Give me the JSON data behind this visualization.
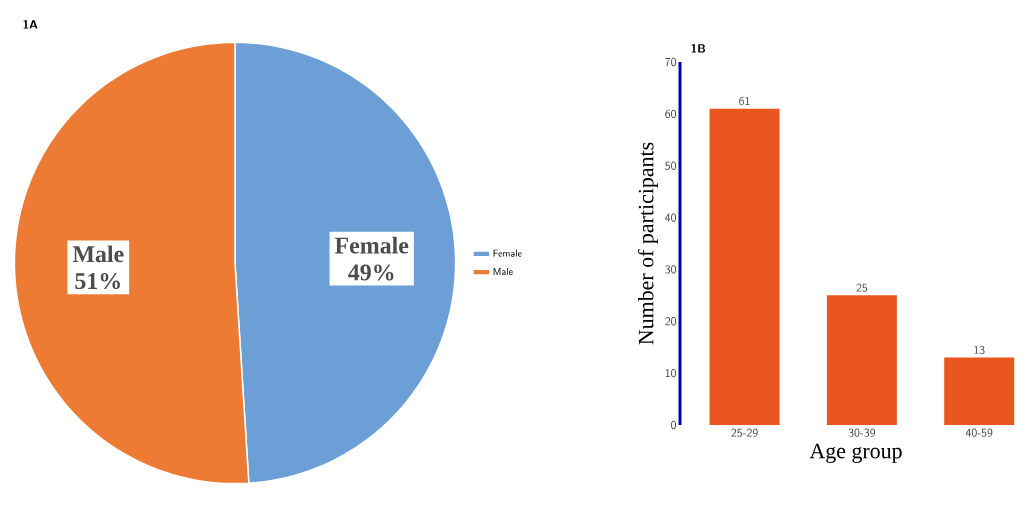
{
  "chart_data": [
    {
      "type": "pie",
      "title": "1A",
      "categories": [
        "Female",
        "Male"
      ],
      "values": [
        49,
        51
      ],
      "colors": [
        "#6b9fd6",
        "#ee7b33"
      ],
      "value_labels": [
        "49%",
        "51%"
      ],
      "legend": "right"
    },
    {
      "type": "bar",
      "title": "1B",
      "categories": [
        "25-29",
        "30-39",
        "40-59"
      ],
      "values": [
        61,
        25,
        13
      ],
      "color": "#e9571e",
      "xlabel": "Age group",
      "ylabel": "Number of participants",
      "ylim": [
        0,
        70
      ],
      "yticks": [
        0,
        10,
        20,
        30,
        40,
        50,
        60,
        70
      ],
      "data_labels": true
    }
  ]
}
